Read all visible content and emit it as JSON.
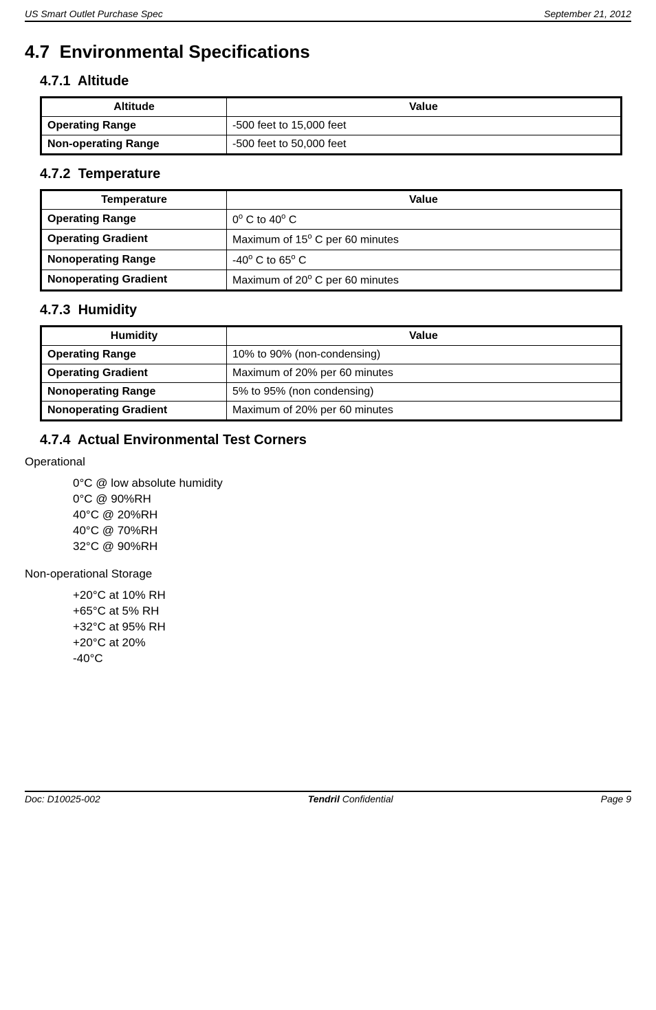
{
  "header": {
    "left": "US Smart Outlet Purchase Spec",
    "right": "September 21, 2012"
  },
  "section": {
    "number": "4.7",
    "title": "Environmental Specifications"
  },
  "subsections": {
    "altitude": {
      "number": "4.7.1",
      "title": "Altitude",
      "col_param": "Altitude",
      "col_value": "Value",
      "rows": [
        {
          "param": "Operating Range",
          "value": "-500 feet to 15,000 feet"
        },
        {
          "param": "Non-operating Range",
          "value": "-500 feet to 50,000 feet"
        }
      ]
    },
    "temperature": {
      "number": "4.7.2",
      "title": "Temperature",
      "col_param": "Temperature",
      "col_value": "Value",
      "rows": [
        {
          "param": "Operating Range",
          "value_html": "0<sup>o</sup> C to 40<sup>o</sup> C"
        },
        {
          "param": "Operating Gradient",
          "value_html": "Maximum of 15<sup>o</sup> C per 60 minutes"
        },
        {
          "param": "Nonoperating Range",
          "value_html": "-40<sup>o</sup> C to 65<sup>o</sup> C"
        },
        {
          "param": "Nonoperating Gradient",
          "value_html": "Maximum of 20<sup>o</sup> C per 60 minutes"
        }
      ]
    },
    "humidity": {
      "number": "4.7.3",
      "title": "Humidity",
      "col_param": "Humidity",
      "col_value": "Value",
      "rows": [
        {
          "param": "Operating Range",
          "value": "10% to 90% (non-condensing)"
        },
        {
          "param": "Operating Gradient",
          "value": "Maximum of 20%  per 60 minutes"
        },
        {
          "param": "Nonoperating Range",
          "value": "5% to 95% (non condensing)"
        },
        {
          "param": "Nonoperating Gradient",
          "value": "Maximum of 20% per 60 minutes"
        }
      ]
    },
    "corners": {
      "number": "4.7.4",
      "title": "Actual Environmental Test Corners",
      "operational_label": "Operational",
      "operational": [
        "0°C @ low absolute humidity",
        "0°C @ 90%RH",
        "40°C @ 20%RH",
        "40°C @ 70%RH",
        "32°C @ 90%RH"
      ],
      "nonop_label": "Non-operational Storage",
      "nonop": [
        "+20°C at 10% RH",
        "+65°C at 5% RH",
        "+32°C at 95% RH",
        "+20°C at 20%",
        "-40°C"
      ]
    }
  },
  "footer": {
    "left": "Doc:  D10025-002",
    "center_brand": "Tendril",
    "center_rest": " Confidential",
    "right": "Page 9"
  }
}
